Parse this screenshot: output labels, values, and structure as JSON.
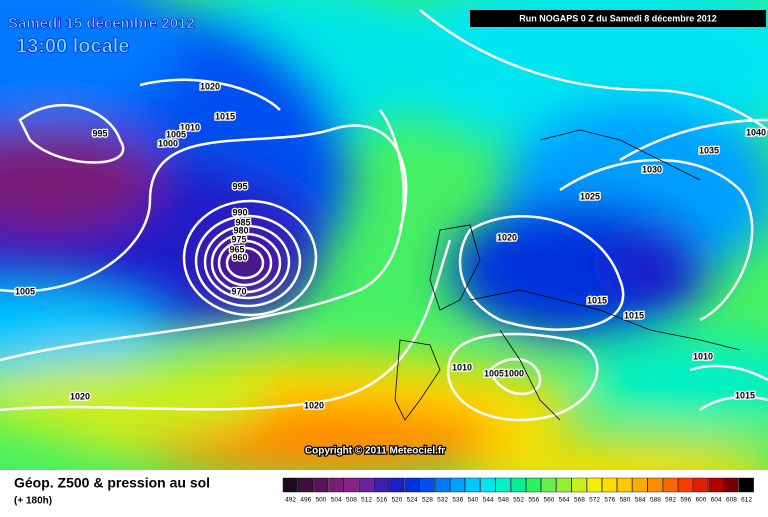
{
  "header": {
    "title": "Samedi 15 décembre 2012",
    "subtitle": "13:00 locale",
    "run": "Run NOGAPS 0 Z du Samedi 8 décembre 2012"
  },
  "copyright": "Copyright © 2011 Meteociel.fr",
  "legend": {
    "title": "Géop. Z500 & pression au sol",
    "lead": "(+ 180h)",
    "values": [
      492,
      496,
      500,
      504,
      508,
      512,
      516,
      520,
      524,
      528,
      532,
      536,
      540,
      544,
      548,
      552,
      556,
      560,
      564,
      568,
      572,
      576,
      580,
      584,
      588,
      592,
      596,
      600,
      604,
      608,
      612
    ],
    "colors": [
      "#1e0a1e",
      "#3c0f3c",
      "#5a145a",
      "#781e78",
      "#8c1e8c",
      "#6e1ea0",
      "#3c1eb4",
      "#1e1ec8",
      "#0032dc",
      "#0050f0",
      "#0078ff",
      "#00a0ff",
      "#00c8ff",
      "#00e6f0",
      "#00f0c8",
      "#00f096",
      "#32f064",
      "#64f046",
      "#96f032",
      "#c8f01e",
      "#f0f000",
      "#ffdc00",
      "#ffc800",
      "#ffaa00",
      "#ff8c00",
      "#ff6400",
      "#ff3c00",
      "#e61e00",
      "#b40000",
      "#780000",
      "#000000"
    ]
  },
  "isobars": [
    "1020",
    "1015",
    "1010",
    "1005",
    "1000",
    "995",
    "995",
    "990",
    "985",
    "980",
    "975",
    "965",
    "960",
    "970",
    "1005",
    "1020",
    "1020",
    "1020",
    "1025",
    "1030",
    "1035",
    "1040",
    "1015",
    "1015",
    "1010",
    "1010",
    "1005",
    "1000",
    "1015"
  ]
}
